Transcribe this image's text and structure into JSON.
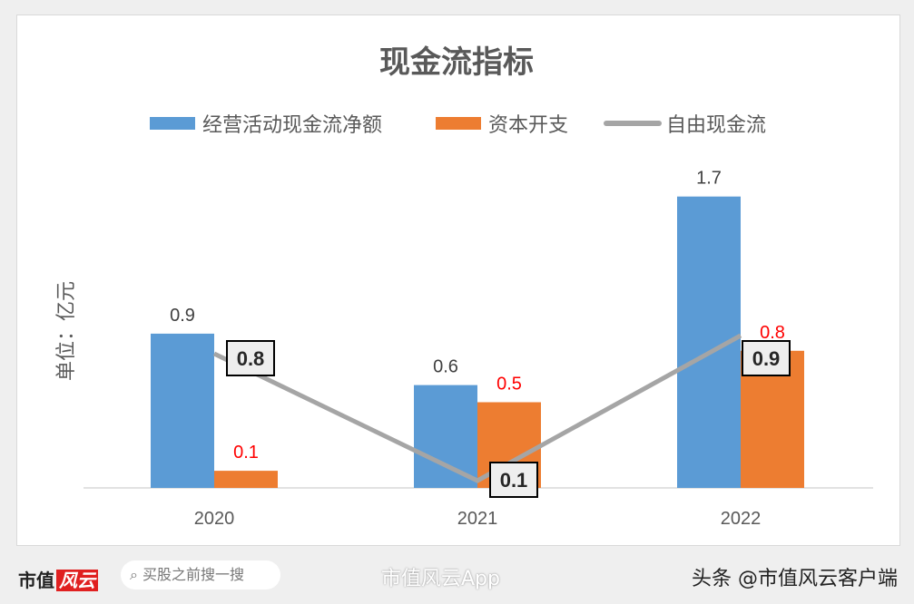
{
  "chart_data": {
    "type": "bar",
    "title": "现金流指标",
    "ylabel": "单位：亿元",
    "categories": [
      "2020",
      "2021",
      "2022"
    ],
    "series": [
      {
        "name": "经营活动现金流净额",
        "type": "bar",
        "color": "#5b9bd5",
        "values": [
          0.9,
          0.6,
          1.7
        ]
      },
      {
        "name": "资本开支",
        "type": "bar",
        "color": "#ed7d31",
        "values": [
          0.1,
          0.5,
          0.8
        ]
      },
      {
        "name": "自由现金流",
        "type": "line",
        "color": "#a5a5a5",
        "values": [
          0.8,
          0.1,
          0.9
        ]
      }
    ],
    "legend": "top",
    "grid": false
  },
  "footer": {
    "logo_text": "市值",
    "logo_mark": "风云",
    "search_placeholder": "买股之前搜一搜",
    "watermark": "市值风云App",
    "source": "头条 @市值风云客户端"
  }
}
